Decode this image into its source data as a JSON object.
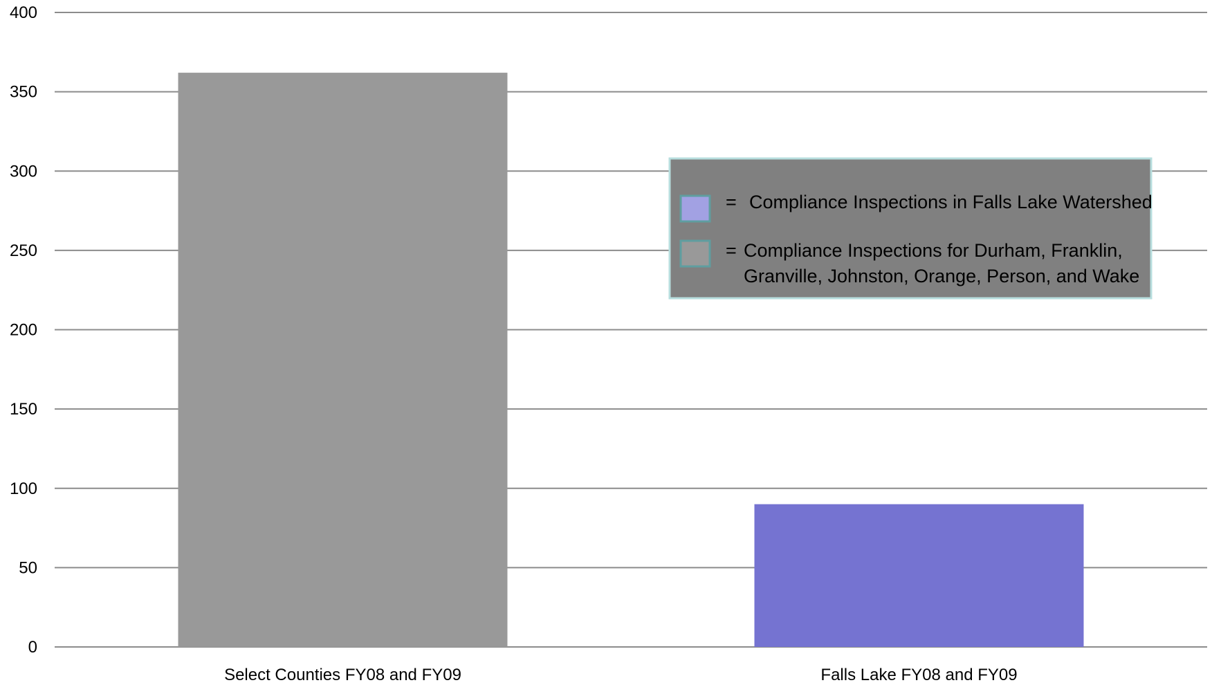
{
  "chart_data": {
    "type": "bar",
    "title": "",
    "xlabel": "",
    "ylabel": "",
    "categories": [
      "Select Counties FY08 and FY09",
      "Falls Lake FY08 and FY09"
    ],
    "values": [
      362,
      90
    ],
    "bar_colors": [
      "#999999",
      "#7573d1"
    ],
    "ylim": [
      0,
      400
    ],
    "yticks": [
      0,
      50,
      100,
      150,
      200,
      250,
      300,
      350,
      400
    ],
    "ytick_labels": [
      "0",
      "50",
      "100",
      "150",
      "200",
      "250",
      "300",
      "350",
      "400"
    ],
    "grid": true,
    "grid_color": "#8c8c8c",
    "legend": {
      "placement": "right",
      "background": "#808080",
      "border": "#b7dede",
      "entries": [
        {
          "color": "#a2a1e3",
          "prefix": "=",
          "lines": [
            "Compliance Inspections in Falls Lake Watershed"
          ]
        },
        {
          "color": "#999999",
          "prefix": "=",
          "lines": [
            "Compliance Inspections for Durham, Franklin,",
            "Granville, Johnston, Orange, Person, and Wake"
          ]
        }
      ]
    }
  }
}
